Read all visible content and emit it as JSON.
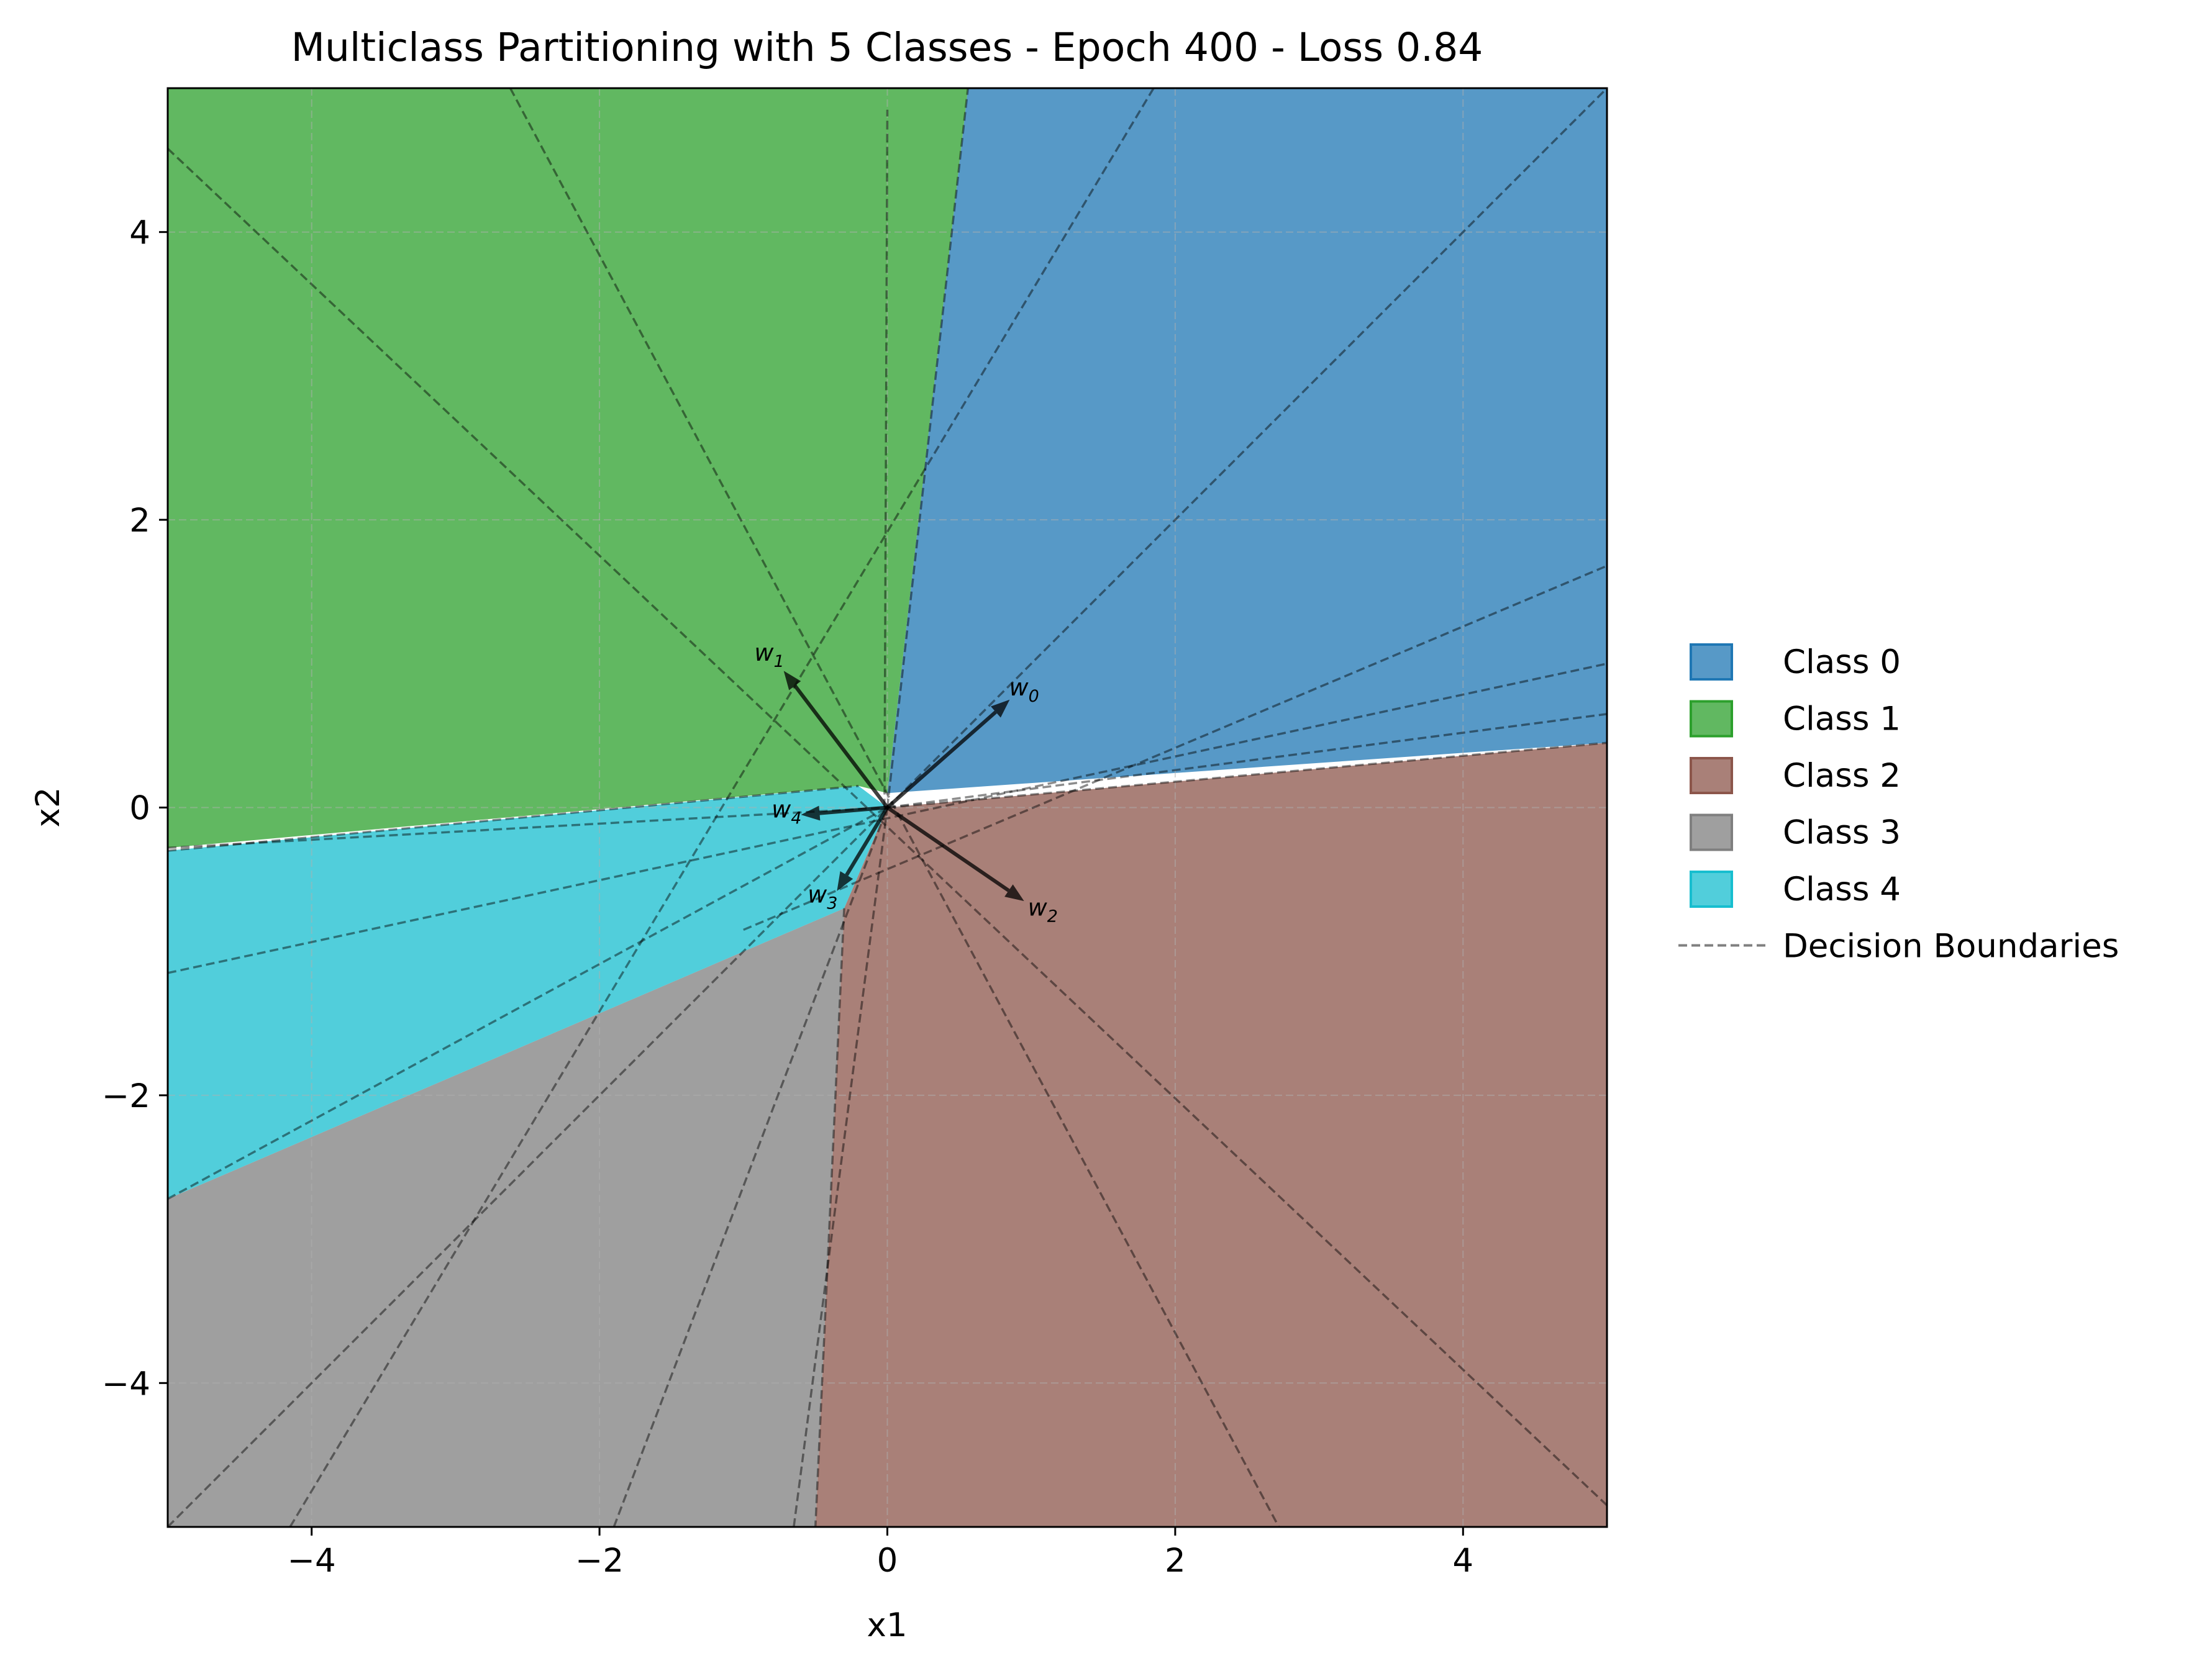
{
  "chart_data": {
    "type": "area",
    "title": "Multiclass Partitioning with 5 Classes - Epoch 400 - Loss 0.84",
    "xlabel": "x1",
    "ylabel": "x2",
    "xlim": [
      -5,
      5
    ],
    "ylim": [
      -5,
      5
    ],
    "x_ticks": [
      -4,
      -2,
      0,
      2,
      4
    ],
    "y_ticks": [
      -4,
      -2,
      0,
      2,
      4
    ],
    "x_tick_labels": [
      "−4",
      "−2",
      "0",
      "2",
      "4"
    ],
    "y_tick_labels": [
      "−4",
      "−2",
      "0",
      "2",
      "4"
    ],
    "grid": true,
    "legend_position": "right",
    "regions": [
      {
        "name": "Class 0",
        "color": "#1f77b4",
        "polygon": [
          [
            0.0,
            0.1
          ],
          [
            0.56,
            5.0
          ],
          [
            5.0,
            5.0
          ],
          [
            5.0,
            0.45
          ],
          [
            0.0,
            0.1
          ]
        ]
      },
      {
        "name": "Class 1",
        "color": "#2ca02c",
        "polygon": [
          [
            -5.0,
            5.0
          ],
          [
            0.56,
            5.0
          ],
          [
            0.0,
            0.1
          ],
          [
            -0.2,
            0.15
          ],
          [
            -5.0,
            -0.28
          ]
        ]
      },
      {
        "name": "Class 2",
        "color": "#8c564b",
        "polygon": [
          [
            0.0,
            0.0
          ],
          [
            5.0,
            0.45
          ],
          [
            5.0,
            -5.0
          ],
          [
            -0.5,
            -5.0
          ],
          [
            -0.3,
            -0.7
          ]
        ]
      },
      {
        "name": "Class 3",
        "color": "#7f7f7f",
        "polygon": [
          [
            -0.3,
            -0.7
          ],
          [
            -0.5,
            -5.0
          ],
          [
            -5.0,
            -5.0
          ],
          [
            -5.0,
            -2.72
          ]
        ]
      },
      {
        "name": "Class 4",
        "color": "#17becf",
        "polygon": [
          [
            -5.0,
            -0.3
          ],
          [
            -0.2,
            0.15
          ],
          [
            0.0,
            0.0
          ],
          [
            -0.3,
            -0.7
          ],
          [
            -5.0,
            -2.72
          ]
        ]
      }
    ],
    "decision_boundaries": [
      [
        [
          0.0,
          0.0
        ],
        [
          0.56,
          5.0
        ]
      ],
      [
        [
          -0.02,
          0.0
        ],
        [
          0.0,
          4.85
        ]
      ],
      [
        [
          0.0,
          0.0
        ],
        [
          5.0,
          0.45
        ]
      ],
      [
        [
          0.0,
          0.0
        ],
        [
          5.0,
          0.65
        ]
      ],
      [
        [
          -5.0,
          -1.15
        ],
        [
          5.0,
          1.0
        ]
      ],
      [
        [
          -1.0,
          -0.85
        ],
        [
          5.0,
          1.68
        ]
      ],
      [
        [
          -5.0,
          -5.0
        ],
        [
          5.0,
          5.0
        ]
      ],
      [
        [
          -4.15,
          -5.0
        ],
        [
          1.85,
          5.0
        ]
      ],
      [
        [
          -5.0,
          -2.72
        ],
        [
          0.0,
          0.0
        ]
      ],
      [
        [
          -5.0,
          -0.28
        ],
        [
          0.0,
          0.0
        ]
      ],
      [
        [
          -5.0,
          -0.3
        ],
        [
          -0.2,
          0.15
        ]
      ],
      [
        [
          -5.0,
          4.58
        ],
        [
          5.0,
          -4.85
        ]
      ],
      [
        [
          -2.62,
          5.0
        ],
        [
          2.72,
          -5.0
        ]
      ],
      [
        [
          -0.3,
          -0.7
        ],
        [
          -0.5,
          -5.0
        ]
      ],
      [
        [
          -1.9,
          -5.0
        ],
        [
          0.0,
          0.0
        ]
      ],
      [
        [
          -0.65,
          -5.0
        ],
        [
          0.0,
          0.0
        ]
      ]
    ],
    "weight_vectors": [
      {
        "name": "w",
        "subscript": "0",
        "vector": [
          0.85,
          0.75
        ],
        "label_position": [
          0.95,
          0.78
        ]
      },
      {
        "name": "w",
        "subscript": "1",
        "vector": [
          -0.72,
          0.95
        ],
        "label_position": [
          -0.82,
          1.02
        ]
      },
      {
        "name": "w",
        "subscript": "2",
        "vector": [
          0.95,
          -0.65
        ],
        "label_position": [
          1.08,
          -0.75
        ]
      },
      {
        "name": "w",
        "subscript": "3",
        "vector": [
          -0.35,
          -0.58
        ],
        "label_position": [
          -0.45,
          -0.66
        ]
      },
      {
        "name": "w",
        "subscript": "4",
        "vector": [
          -0.6,
          -0.05
        ],
        "label_position": [
          -0.7,
          -0.07
        ]
      }
    ],
    "legend": [
      {
        "label": "Class 0",
        "kind": "patch",
        "fill": "#1f77b4",
        "edge": "#1f77b4"
      },
      {
        "label": "Class 1",
        "kind": "patch",
        "fill": "#2ca02c",
        "edge": "#2ca02c"
      },
      {
        "label": "Class 2",
        "kind": "patch",
        "fill": "#8c564b",
        "edge": "#8c564b"
      },
      {
        "label": "Class 3",
        "kind": "patch",
        "fill": "#7f7f7f",
        "edge": "#7f7f7f"
      },
      {
        "label": "Class 4",
        "kind": "patch",
        "fill": "#17becf",
        "edge": "#17becf"
      },
      {
        "label": "Decision Boundaries",
        "kind": "dashed-line",
        "fill": "#808080",
        "edge": "#808080"
      }
    ]
  }
}
